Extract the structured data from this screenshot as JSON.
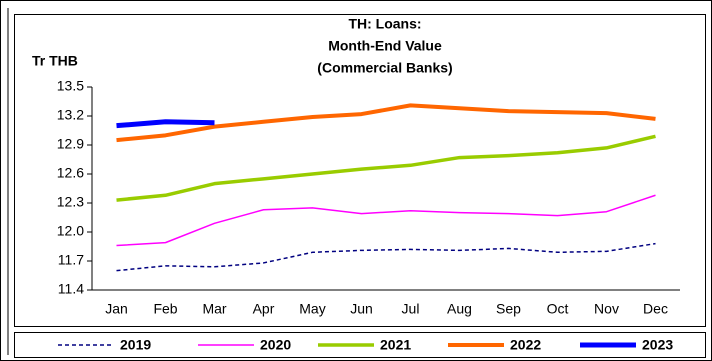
{
  "chart_data": {
    "type": "line",
    "title": [
      "TH: Loans:",
      "Month-End Value",
      "(Commercial Banks)"
    ],
    "y_label": "Tr THB",
    "categories": [
      "Jan",
      "Feb",
      "Mar",
      "Apr",
      "May",
      "Jun",
      "Jul",
      "Aug",
      "Sep",
      "Oct",
      "Nov",
      "Dec"
    ],
    "series": [
      {
        "name": "2019",
        "color": "#000080",
        "dashed": true,
        "values": [
          11.6,
          11.65,
          11.64,
          11.68,
          11.79,
          11.81,
          11.82,
          11.81,
          11.83,
          11.79,
          11.8,
          11.88
        ]
      },
      {
        "name": "2020",
        "color": "#ff00ff",
        "values": [
          11.86,
          11.89,
          12.09,
          12.23,
          12.25,
          12.19,
          12.22,
          12.2,
          12.19,
          12.17,
          12.21,
          12.38
        ]
      },
      {
        "name": "2021",
        "color": "#99cc00",
        "values": [
          12.33,
          12.38,
          12.5,
          12.55,
          12.6,
          12.65,
          12.69,
          12.77,
          12.79,
          12.82,
          12.87,
          12.99
        ]
      },
      {
        "name": "2022",
        "color": "#ff6600",
        "values": [
          12.95,
          13.0,
          13.09,
          13.14,
          13.19,
          13.22,
          13.31,
          13.28,
          13.25,
          13.24,
          13.23,
          13.17
        ]
      },
      {
        "name": "2023",
        "color": "#0000ff",
        "values": [
          13.1,
          13.14,
          13.13,
          null,
          null,
          null,
          null,
          null,
          null,
          null,
          null,
          null
        ]
      }
    ],
    "ylim": [
      11.4,
      13.5
    ],
    "yticks": [
      {
        "value": 11.4,
        "label": "11.4"
      },
      {
        "value": 11.7,
        "label": "11.7"
      },
      {
        "value": 12.0,
        "label": "12.0"
      },
      {
        "value": 12.3,
        "label": "12.3"
      },
      {
        "value": 12.6,
        "label": "12.6"
      },
      {
        "value": 12.9,
        "label": "12.9"
      },
      {
        "value": 13.2,
        "label": "13.2"
      },
      {
        "value": 13.5,
        "label": "13.5"
      }
    ],
    "grid": false,
    "legend": "bottom"
  }
}
